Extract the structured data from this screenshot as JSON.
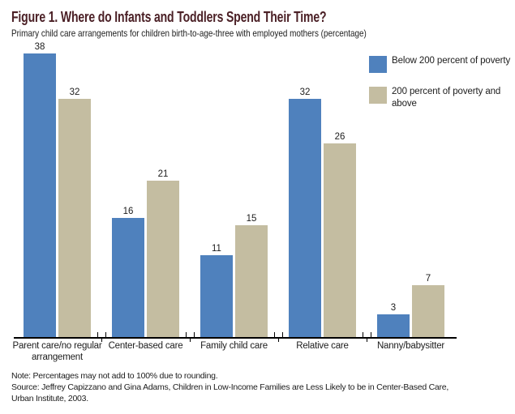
{
  "header": {
    "title": "Figure 1. Where do Infants and Toddlers Spend Their Time?",
    "subtitle": "Primary child care arrangements for children birth-to-age-three with employed mothers (percentage)"
  },
  "colors": {
    "title": "#4b2026",
    "text": "#1c1c1c",
    "axis": "#000000",
    "series1": "#4f81bd",
    "series2": "#c4bda1"
  },
  "chart_data": {
    "type": "bar",
    "title": "Figure 1. Where do Infants and Toddlers Spend Their Time?",
    "subtitle": "Primary child care arrangements for children birth-to-age-three with employed mothers (percentage)",
    "categories": [
      "Parent care/no regular arrangement",
      "Center-based care",
      "Family child care",
      "Relative care",
      "Nanny/babysitter"
    ],
    "series": [
      {
        "name": "Below 200 percent of poverty",
        "color": "#4f81bd",
        "values": [
          38,
          16,
          11,
          32,
          3
        ]
      },
      {
        "name": "200 percent of poverty and above",
        "color": "#c4bda1",
        "values": [
          32,
          21,
          15,
          26,
          7
        ]
      }
    ],
    "ylim": [
      0,
      40
    ],
    "grid": false,
    "y_axis_shown": false,
    "data_labels": true,
    "legend_position": "top-right",
    "units": "percent"
  },
  "footer": {
    "note": "Note: Percentages may not add to 100% due to rounding.",
    "source_lines": [
      "Source: Jeffrey Capizzano and Gina Adams, Children in Low-Income Families are Less Likely to be in Center-Based Care,",
      "Urban Institute, 2003."
    ]
  }
}
